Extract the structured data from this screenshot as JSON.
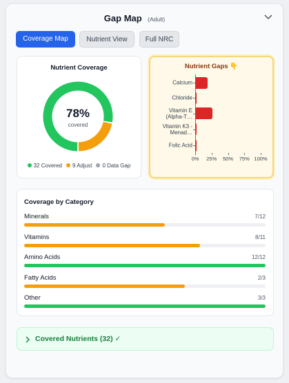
{
  "header": {
    "title": "Gap Map",
    "subtitle": "(Adult)"
  },
  "tabs": [
    {
      "label": "Coverage Map",
      "active": true
    },
    {
      "label": "Nutrient View",
      "active": false
    },
    {
      "label": "Full NRC",
      "active": false
    }
  ],
  "nutrient_coverage": {
    "title": "Nutrient Coverage",
    "center_value": "78%",
    "center_label": "covered",
    "legend": [
      {
        "count": 32,
        "label": "Covered",
        "color": "#22c55e"
      },
      {
        "count": 9,
        "label": "Adjust",
        "color": "#f59e0b"
      },
      {
        "count": 0,
        "label": "Data Gap",
        "color": "#9ca3af"
      }
    ]
  },
  "chart_data": {
    "type": "bar",
    "orientation": "horizontal",
    "title": "Nutrient Gaps 👇",
    "categories": [
      "Calcium",
      "Chloride",
      "Vitamin E (Alpha-T…",
      "Vitamin K3 - Menad…",
      "Folic Acid"
    ],
    "values": [
      19,
      2,
      26,
      2,
      2
    ],
    "color": "#dc2626",
    "xlim": [
      0,
      100
    ],
    "xticks": [
      {
        "value": 0,
        "label": "0%"
      },
      {
        "value": 25,
        "label": "25%"
      },
      {
        "value": 50,
        "label": "50%"
      },
      {
        "value": 75,
        "label": "75%"
      },
      {
        "value": 100,
        "label": "100%"
      }
    ]
  },
  "category_coverage": {
    "title": "Coverage by Category",
    "rows": [
      {
        "name": "Minerals",
        "label": "7/12",
        "covered": 7,
        "total": 12,
        "color": "#f59e0b"
      },
      {
        "name": "Vitamins",
        "label": "8/11",
        "covered": 8,
        "total": 11,
        "color": "#f59e0b"
      },
      {
        "name": "Amino Acids",
        "label": "12/12",
        "covered": 12,
        "total": 12,
        "color": "#22c55e"
      },
      {
        "name": "Fatty Acids",
        "label": "2/3",
        "covered": 2,
        "total": 3,
        "color": "#f59e0b"
      },
      {
        "name": "Other",
        "label": "3/3",
        "covered": 3,
        "total": 3,
        "color": "#22c55e"
      }
    ]
  },
  "footer": {
    "label": "Covered Nutrients (32) ✓"
  }
}
